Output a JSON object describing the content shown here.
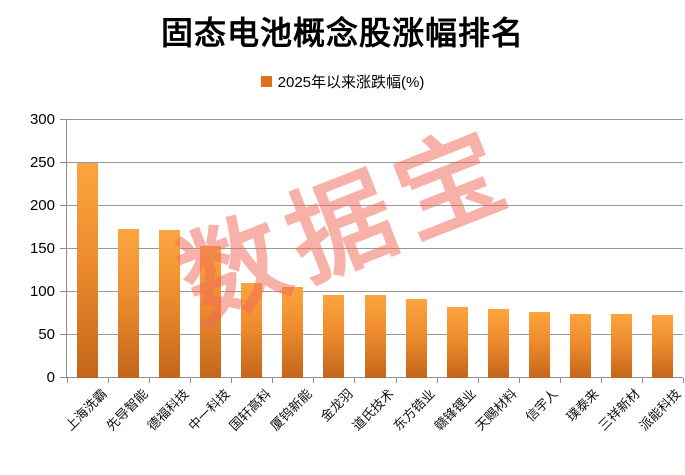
{
  "title": "固态电池概念股涨幅排名",
  "legend": {
    "label": "2025年以来涨跌幅(%)"
  },
  "watermark": "数据宝",
  "chart_data": {
    "type": "bar",
    "title": "固态电池概念股涨幅排名",
    "series_name": "2025年以来涨跌幅(%)",
    "categories": [
      "上海洗霸",
      "先导智能",
      "德福科技",
      "中一科技",
      "国轩高科",
      "厦钨新能",
      "金龙羽",
      "道氏技术",
      "东方锆业",
      "赣锋锂业",
      "天赐材料",
      "信宇人",
      "璞泰来",
      "三祥新材",
      "派能科技"
    ],
    "values": [
      250,
      173,
      172,
      153,
      110,
      106,
      97,
      96,
      92,
      83,
      80,
      77,
      75,
      74,
      73
    ],
    "xlabel": "",
    "ylabel": "",
    "ylim": [
      0,
      300
    ],
    "ytick_step": 50,
    "yticks": [
      0,
      50,
      100,
      150,
      200,
      250,
      300
    ],
    "grid": true,
    "legend_position": "top",
    "x_label_rotation_deg": -45,
    "colors": {
      "bar_top": "#FBA53F",
      "bar_mid": "#EE8C2D",
      "bar_bottom": "#C3661B",
      "legend_marker": "#DF701B",
      "gridline": "#999999",
      "axis": "#8F8F8F",
      "watermark": "rgba(242,106,90,0.52)",
      "text": "#000000",
      "background": "#FFFFFF"
    }
  }
}
